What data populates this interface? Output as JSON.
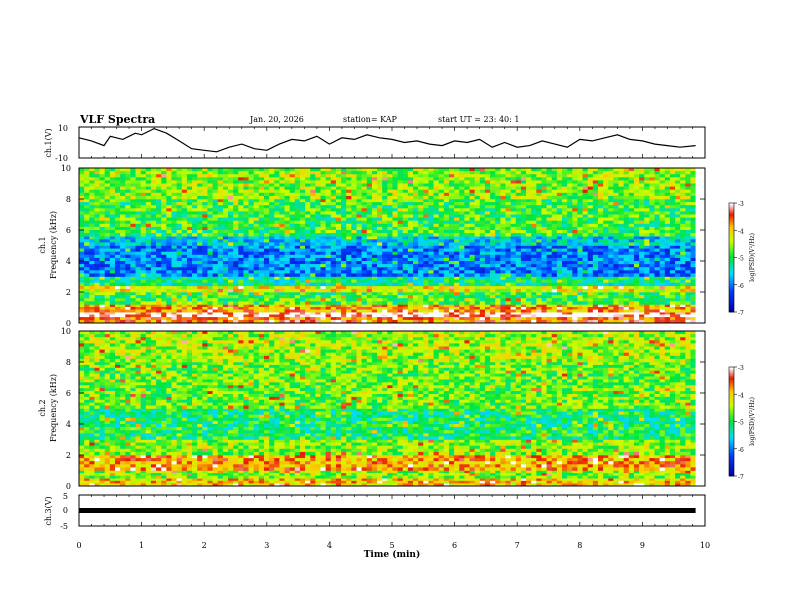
{
  "header": {
    "title": "VLF Spectra",
    "date": "Jan. 20, 2026",
    "station": "station= KAP",
    "start_ut": "start  UT =   23: 40: 1"
  },
  "chart_data": [
    {
      "type": "line",
      "ylabel": "ch.1(V)",
      "ylim": [
        -10,
        10
      ],
      "yticks": [
        "10",
        "-10"
      ],
      "xlim": [
        0,
        10
      ],
      "description_free": true,
      "series": [
        {
          "x": [
            0,
            0.2,
            0.4,
            0.5,
            0.7,
            0.9,
            1.0,
            1.2,
            1.4,
            1.6,
            1.8,
            2.0,
            2.2,
            2.4,
            2.6,
            2.8,
            3.0,
            3.2,
            3.4,
            3.6,
            3.8,
            4.0,
            4.2,
            4.4,
            4.6,
            4.8,
            5.0,
            5.2,
            5.4,
            5.6,
            5.8,
            6.0,
            6.2,
            6.4,
            6.6,
            6.8,
            7.0,
            7.2,
            7.4,
            7.6,
            7.8,
            8.0,
            8.2,
            8.4,
            8.6,
            8.8,
            9.0,
            9.2,
            9.4,
            9.6,
            9.85
          ],
          "values": [
            3,
            1,
            -2,
            4,
            2,
            6,
            5,
            9,
            6,
            1,
            -4,
            -5,
            -6,
            -3,
            -1,
            -4,
            -5,
            -1,
            2,
            1,
            4,
            -1,
            3,
            2,
            5,
            3,
            2,
            0,
            1,
            -1,
            -2,
            1,
            0,
            2,
            -3,
            0,
            -3,
            -2,
            1,
            -1,
            -3,
            2,
            1,
            3,
            5,
            2,
            1,
            -1,
            -2,
            -3,
            -2
          ]
        }
      ]
    },
    {
      "type": "heatmap",
      "ylabel_top": "ch.1",
      "ylabel": "Frequency  (kHz)",
      "ylim": [
        0,
        10
      ],
      "yticks": [
        "0",
        "2",
        "4",
        "6",
        "8",
        "10"
      ],
      "xlim": [
        0,
        10
      ],
      "colorbar": {
        "label": "log(PSD)(V²/Hz)",
        "ticks": [
          "-3",
          "-4",
          "-5",
          "-6",
          "-7"
        ],
        "range": [
          -7,
          -3
        ]
      },
      "bands": [
        {
          "f0": 0.0,
          "f1": 0.4,
          "level": -3.6
        },
        {
          "f0": 0.4,
          "f1": 0.7,
          "level": -3.0
        },
        {
          "f0": 0.7,
          "f1": 1.2,
          "level": -3.8
        },
        {
          "f0": 1.2,
          "f1": 2.0,
          "level": -4.9
        },
        {
          "f0": 2.0,
          "f1": 2.4,
          "level": -4.2
        },
        {
          "f0": 2.4,
          "f1": 3.0,
          "level": -5.2
        },
        {
          "f0": 3.0,
          "f1": 5.0,
          "level": -6.0
        },
        {
          "f0": 5.0,
          "f1": 5.6,
          "level": -5.6
        },
        {
          "f0": 5.6,
          "f1": 8.0,
          "level": -4.9
        },
        {
          "f0": 8.0,
          "f1": 10.0,
          "level": -4.6
        }
      ]
    },
    {
      "type": "heatmap",
      "ylabel_top": "ch.2",
      "ylabel": "Frequency  (kHz)",
      "ylim": [
        0,
        10
      ],
      "yticks": [
        "0",
        "2",
        "4",
        "6",
        "8",
        "10"
      ],
      "xlim": [
        0,
        10
      ],
      "colorbar": {
        "label": "log(PSD)(V²/Hz)",
        "ticks": [
          "-3",
          "-4",
          "-5",
          "-6",
          "-7"
        ],
        "range": [
          -7,
          -3
        ]
      },
      "bands": [
        {
          "f0": 0.0,
          "f1": 0.5,
          "level": -4.0
        },
        {
          "f0": 0.5,
          "f1": 1.0,
          "level": -4.6
        },
        {
          "f0": 1.0,
          "f1": 2.0,
          "level": -3.8
        },
        {
          "f0": 2.0,
          "f1": 3.0,
          "level": -4.6
        },
        {
          "f0": 3.0,
          "f1": 5.0,
          "level": -5.1
        },
        {
          "f0": 5.0,
          "f1": 8.0,
          "level": -4.7
        },
        {
          "f0": 8.0,
          "f1": 10.0,
          "level": -4.5
        }
      ]
    },
    {
      "type": "line",
      "ylabel": "ch.3(V)",
      "ylim": [
        -5,
        5
      ],
      "yticks": [
        "5",
        "0",
        "-5"
      ],
      "xlim": [
        0,
        10
      ],
      "xlabel": "Time  (min)",
      "xticks": [
        "0",
        "1",
        "2",
        "3",
        "4",
        "5",
        "6",
        "7",
        "8",
        "9",
        "10"
      ],
      "series": [
        {
          "x": [
            0,
            9.85
          ],
          "values": [
            0,
            0
          ]
        }
      ]
    }
  ]
}
